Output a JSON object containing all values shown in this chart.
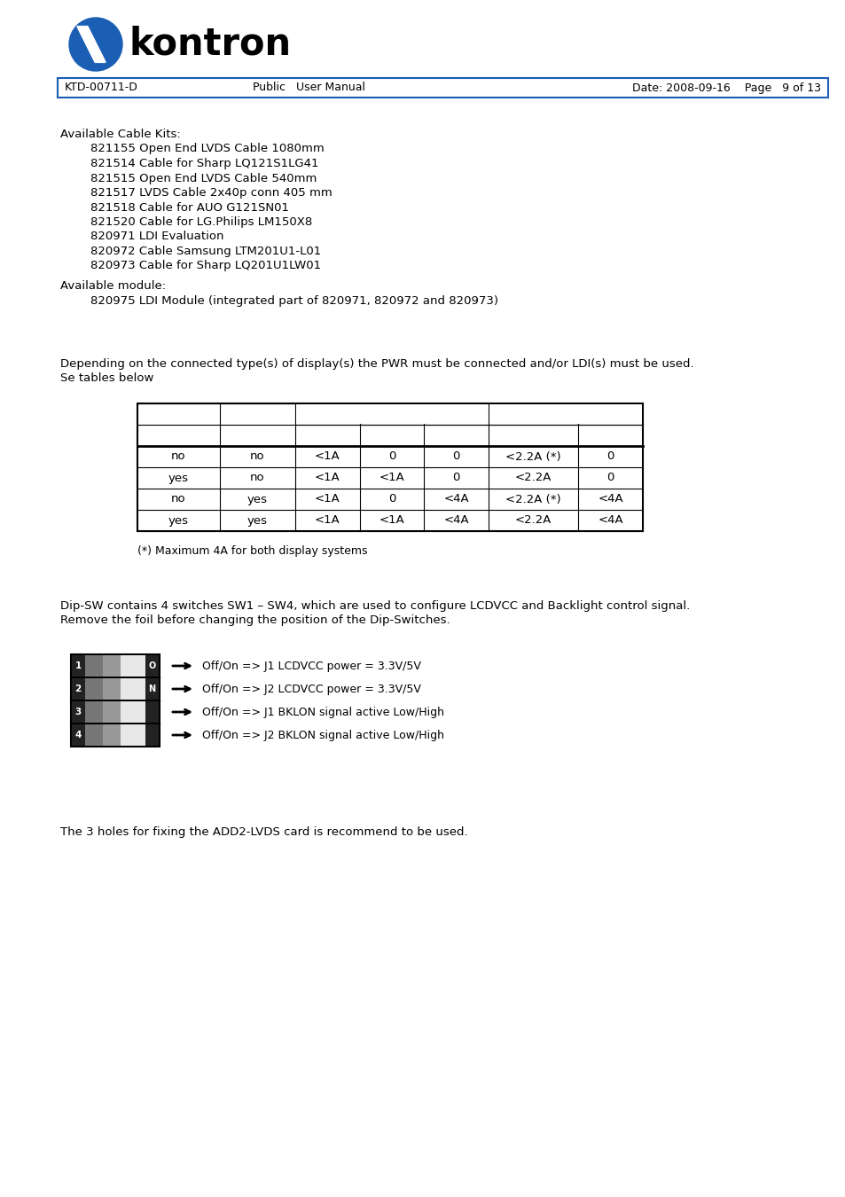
{
  "page_bg": "#ffffff",
  "header_bar_color": "#1a5fb4",
  "header_text_left": "KTD-00711-D",
  "header_text_mid": "Public   User Manual",
  "header_text_right": "Date: 2008-09-16    Page   9 of 13",
  "body_text_block1": [
    "Available Cable Kits:",
    "        821155 Open End LVDS Cable 1080mm",
    "        821514 Cable for Sharp LQ121S1LG41",
    "        821515 Open End LVDS Cable 540mm",
    "        821517 LVDS Cable 2x40p conn 405 mm",
    "        821518 Cable for AUO G121SN01",
    "        821520 Cable for LG.Philips LM150X8",
    "        820971 LDI Evaluation",
    "        820972 Cable Samsung LTM201U1-L01",
    "        820973 Cable for Sharp LQ201U1LW01"
  ],
  "body_text_block2": [
    "Available module:",
    "        820975 LDI Module (integrated part of 820971, 820972 and 820973)"
  ],
  "body_text_para1": "Depending on the connected type(s) of display(s) the PWR must be connected and/or LDI(s) must be used.\nSe tables below",
  "table_data": [
    [
      "no",
      "no",
      "<1A",
      "0",
      "0",
      "<2.2A (*)",
      "0"
    ],
    [
      "yes",
      "no",
      "<1A",
      "<1A",
      "0",
      "<2.2A",
      "0"
    ],
    [
      "no",
      "yes",
      "<1A",
      "0",
      "<4A",
      "<2.2A (*)",
      "<4A"
    ],
    [
      "yes",
      "yes",
      "<1A",
      "<1A",
      "<4A",
      "<2.2A",
      "<4A"
    ]
  ],
  "table_note": "(*) Maximum 4A for both display systems",
  "para2_text": "Dip-SW contains 4 switches SW1 – SW4, which are used to configure LCDVCC and Backlight control signal.\nRemove the foil before changing the position of the Dip-Switches.",
  "dip_labels": [
    "Off/On => J1 LCDVCC power = 3.3V/5V",
    "Off/On => J2 LCDVCC power = 3.3V/5V",
    "Off/On => J1 BKLON signal active Low/High",
    "Off/On => J2 BKLON signal active Low/High"
  ],
  "para3_text": "The 3 holes for fixing the ADD2-LVDS card is recommend to be used.",
  "font_size_body": 9.5,
  "font_size_header": 9,
  "table_font_size": 9.5,
  "logo_blue": "#1a5fb4",
  "header_border_color": "#1a5fb4"
}
